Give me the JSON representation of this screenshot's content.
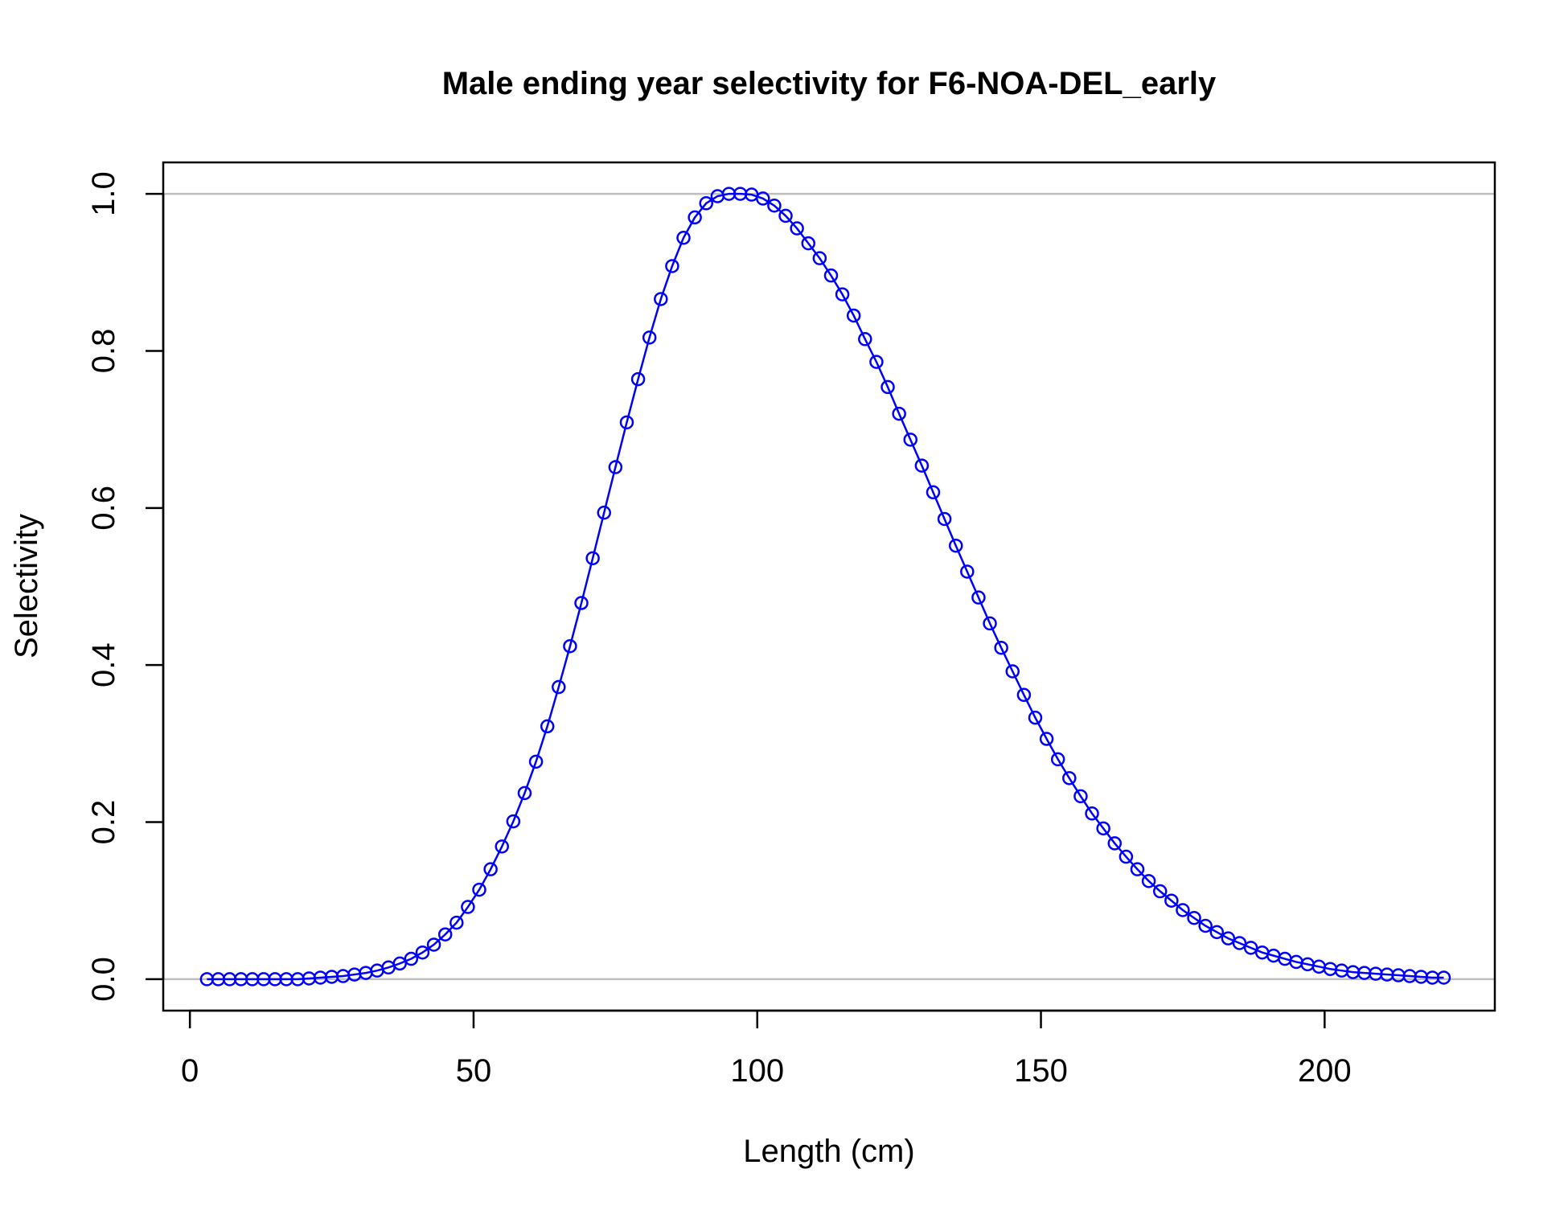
{
  "chart_data": {
    "type": "line",
    "title": "Male ending year selectivity for F6-NOA-DEL_early",
    "xlabel": "Length (cm)",
    "ylabel": "Selectivity",
    "xlim": [
      -4.7,
      230
    ],
    "ylim": [
      -0.04,
      1.04
    ],
    "xticks": [
      0,
      50,
      100,
      150,
      200
    ],
    "xtick_labels": [
      "0",
      "50",
      "100",
      "150",
      "200"
    ],
    "yticks": [
      0.0,
      0.2,
      0.4,
      0.6,
      0.8,
      1.0
    ],
    "ytick_labels": [
      "0.0",
      "0.2",
      "0.4",
      "0.6",
      "0.8",
      "1.0"
    ],
    "reference_lines": [
      0,
      1
    ],
    "reference_line_color": "#bebebe",
    "grid": false,
    "legend": null,
    "series": [
      {
        "color": "#0000ff",
        "marker": "open-circle",
        "x": [
          3,
          5,
          7,
          9,
          11,
          13,
          15,
          17,
          19,
          21,
          23,
          25,
          27,
          29,
          31,
          33,
          35,
          37,
          39,
          41,
          43,
          45,
          47,
          49,
          51,
          53,
          55,
          57,
          59,
          61,
          63,
          65,
          67,
          69,
          71,
          73,
          75,
          77,
          79,
          81,
          83,
          85,
          87,
          89,
          91,
          93,
          95,
          97,
          99,
          101,
          103,
          105,
          107,
          109,
          111,
          113,
          115,
          117,
          119,
          121,
          123,
          125,
          127,
          129,
          131,
          133,
          135,
          137,
          139,
          141,
          143,
          145,
          147,
          149,
          151,
          153,
          155,
          157,
          159,
          161,
          163,
          165,
          167,
          169,
          171,
          173,
          175,
          177,
          179,
          181,
          183,
          185,
          187,
          189,
          191,
          193,
          195,
          197,
          199,
          201,
          203,
          205,
          207,
          209,
          211,
          213,
          215,
          217,
          219,
          221
        ],
        "y": [
          0.0,
          0.0,
          0.0,
          0.0,
          0.0,
          0.0,
          0.0,
          0.0,
          0.0,
          0.001,
          0.002,
          0.003,
          0.004,
          0.006,
          0.008,
          0.011,
          0.015,
          0.02,
          0.026,
          0.034,
          0.044,
          0.057,
          0.072,
          0.092,
          0.114,
          0.14,
          0.169,
          0.201,
          0.237,
          0.277,
          0.322,
          0.372,
          0.424,
          0.479,
          0.536,
          0.594,
          0.652,
          0.709,
          0.764,
          0.817,
          0.866,
          0.908,
          0.944,
          0.97,
          0.988,
          0.997,
          1.0,
          1.0,
          0.999,
          0.994,
          0.985,
          0.972,
          0.956,
          0.937,
          0.918,
          0.896,
          0.872,
          0.845,
          0.815,
          0.786,
          0.754,
          0.72,
          0.687,
          0.654,
          0.62,
          0.586,
          0.552,
          0.519,
          0.486,
          0.453,
          0.422,
          0.392,
          0.362,
          0.333,
          0.306,
          0.28,
          0.256,
          0.233,
          0.211,
          0.192,
          0.173,
          0.156,
          0.14,
          0.125,
          0.112,
          0.1,
          0.088,
          0.078,
          0.068,
          0.06,
          0.052,
          0.046,
          0.04,
          0.034,
          0.03,
          0.026,
          0.022,
          0.019,
          0.016,
          0.013,
          0.011,
          0.009,
          0.008,
          0.007,
          0.006,
          0.005,
          0.004,
          0.003,
          0.002,
          0.002
        ]
      }
    ]
  }
}
